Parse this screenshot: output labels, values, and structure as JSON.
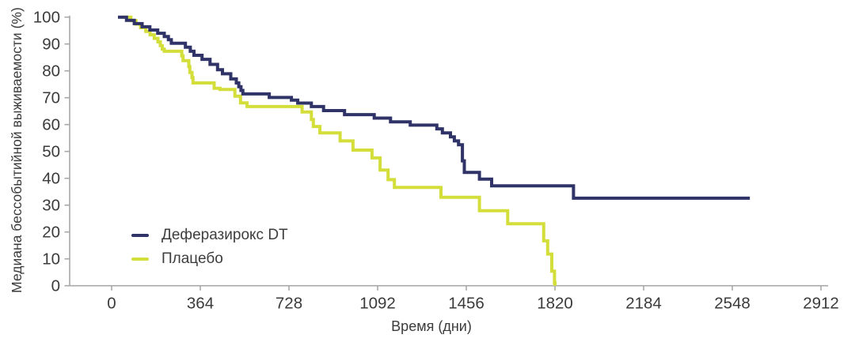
{
  "chart_data": {
    "type": "line",
    "subtype": "kaplan-meier-step",
    "title": "",
    "xlabel": "Время (дни)",
    "ylabel": "Медиана бессобытийной выживаемости (%)",
    "xlim": [
      0,
      2912
    ],
    "ylim": [
      0,
      100
    ],
    "x_ticks": [
      0,
      364,
      728,
      1092,
      1456,
      1820,
      2184,
      2548,
      2912
    ],
    "y_ticks": [
      0,
      10,
      20,
      30,
      40,
      50,
      60,
      70,
      80,
      90,
      100
    ],
    "grid": false,
    "legend_position": "inside-bottom-left",
    "line_width": 4,
    "axis_color": "#a8a8a8",
    "tick_text_color": "#3b3b3b",
    "series": [
      {
        "name": "Деферазирокс DT",
        "color": "#2f3367",
        "points": [
          [
            26,
            100
          ],
          [
            61,
            98.8
          ],
          [
            93,
            97.6
          ],
          [
            125,
            96.4
          ],
          [
            157,
            95.2
          ],
          [
            189,
            94
          ],
          [
            216,
            92.8
          ],
          [
            233,
            91.6
          ],
          [
            245,
            90.3
          ],
          [
            303,
            88.8
          ],
          [
            323,
            87.3
          ],
          [
            338,
            85.8
          ],
          [
            371,
            84.3
          ],
          [
            404,
            82.4
          ],
          [
            435,
            80.4
          ],
          [
            455,
            78.9
          ],
          [
            489,
            77
          ],
          [
            512,
            75.5
          ],
          [
            522,
            74.1
          ],
          [
            531,
            72.7
          ],
          [
            539,
            71.4
          ],
          [
            647,
            70.1
          ],
          [
            738,
            69.1
          ],
          [
            764,
            68
          ],
          [
            820,
            66.7
          ],
          [
            870,
            65.2
          ],
          [
            956,
            63.7
          ],
          [
            1078,
            62.4
          ],
          [
            1145,
            61
          ],
          [
            1226,
            59.8
          ],
          [
            1335,
            58.4
          ],
          [
            1358,
            56.9
          ],
          [
            1391,
            55.4
          ],
          [
            1407,
            53.9
          ],
          [
            1424,
            52.5
          ],
          [
            1440,
            46.5
          ],
          [
            1448,
            42.2
          ],
          [
            1510,
            39.7
          ],
          [
            1560,
            37.2
          ],
          [
            1896,
            32.6
          ],
          [
            2620,
            32.6
          ]
        ]
      },
      {
        "name": "Плацебо",
        "color": "#d4de3a",
        "points": [
          [
            40,
            100
          ],
          [
            79,
            98.7
          ],
          [
            100,
            97.4
          ],
          [
            119,
            96.1
          ],
          [
            140,
            94.7
          ],
          [
            158,
            93.4
          ],
          [
            175,
            92.1
          ],
          [
            190,
            90.8
          ],
          [
            200,
            89.4
          ],
          [
            208,
            88.1
          ],
          [
            216,
            87.3
          ],
          [
            288,
            85.6
          ],
          [
            293,
            83.8
          ],
          [
            317,
            81.6
          ],
          [
            321,
            79.4
          ],
          [
            330,
            77.5
          ],
          [
            334,
            75.5
          ],
          [
            421,
            73.5
          ],
          [
            445,
            73.1
          ],
          [
            506,
            70.6
          ],
          [
            529,
            68.1
          ],
          [
            556,
            66.7
          ],
          [
            782,
            64.7
          ],
          [
            820,
            61.9
          ],
          [
            828,
            59.3
          ],
          [
            855,
            56.9
          ],
          [
            938,
            53.9
          ],
          [
            991,
            50.5
          ],
          [
            1069,
            47.6
          ],
          [
            1102,
            43.1
          ],
          [
            1135,
            39.5
          ],
          [
            1161,
            36.6
          ],
          [
            1352,
            32.9
          ],
          [
            1510,
            27.9
          ],
          [
            1626,
            23.1
          ],
          [
            1774,
            16.7
          ],
          [
            1790,
            11.8
          ],
          [
            1807,
            5.4
          ],
          [
            1818,
            1
          ],
          [
            1820,
            0
          ]
        ]
      }
    ]
  }
}
